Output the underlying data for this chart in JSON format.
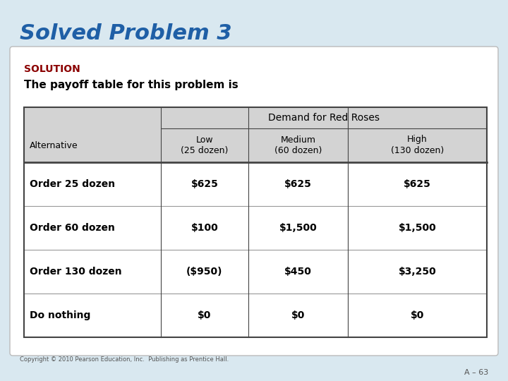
{
  "title": "Solved Problem 3",
  "title_color": "#1F5FA6",
  "title_fontsize": 22,
  "bg_color": "#D9E8F0",
  "solution_label": "SOLUTION",
  "solution_color": "#8B0000",
  "solution_fontsize": 10,
  "subtitle": "The payoff table for this problem is",
  "subtitle_fontsize": 11,
  "table_header_main": "Demand for Red Roses",
  "table_col_headers": [
    "Alternative",
    "Low\n(25 dozen)",
    "Medium\n(60 dozen)",
    "High\n(130 dozen)"
  ],
  "table_rows": [
    [
      "Order 25 dozen",
      "$625",
      "$625",
      "$625"
    ],
    [
      "Order 60 dozen",
      "$100",
      "$1,500",
      "$1,500"
    ],
    [
      "Order 130 dozen",
      "($950)",
      "$450",
      "$3,250"
    ],
    [
      "Do nothing",
      "$0",
      "$0",
      "$0"
    ]
  ],
  "header_bg": "#D3D3D3",
  "table_border_color": "#444444",
  "row_line_color": "#999999",
  "copyright": "Copyright © 2010 Pearson Education, Inc.  Publishing as Prentice Hall.",
  "page_label": "A – 63"
}
